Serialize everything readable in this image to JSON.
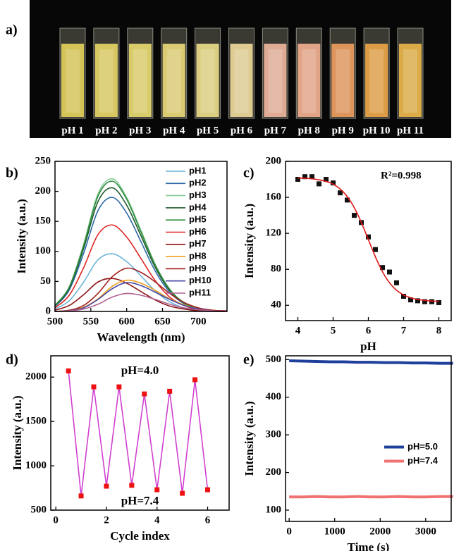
{
  "photo": {
    "label": "a)",
    "samples": [
      {
        "label": "pH 1",
        "color": "#e6d35a"
      },
      {
        "label": "pH 2",
        "color": "#e8d766"
      },
      {
        "label": "pH 3",
        "color": "#eadb70"
      },
      {
        "label": "pH 4",
        "color": "#ecdc7a"
      },
      {
        "label": "pH 5",
        "color": "#eedf88"
      },
      {
        "label": "pH 6",
        "color": "#f0dc9c"
      },
      {
        "label": "pH 7",
        "color": "#f2b8a0"
      },
      {
        "label": "pH 8",
        "color": "#f4b090"
      },
      {
        "label": "pH 9",
        "color": "#f0a060"
      },
      {
        "label": "pH 10",
        "color": "#f0a848"
      },
      {
        "label": "pH 11",
        "color": "#ecb848"
      }
    ]
  },
  "chart_data": [
    {
      "type": "line",
      "label": "b)",
      "xlabel": "Wavelength (nm)",
      "ylabel": "Intensity (a.u.)",
      "smooth": true,
      "xlim": [
        500,
        740
      ],
      "ylim": [
        0,
        250
      ],
      "xticks": [
        500,
        550,
        600,
        650,
        700
      ],
      "yticks": [
        0,
        50,
        100,
        150,
        200,
        250
      ],
      "legend": "upper right",
      "x": [
        500,
        520,
        540,
        560,
        580,
        600,
        620,
        640,
        660,
        680,
        700,
        720,
        740
      ],
      "series": [
        {
          "name": "pH1",
          "color": "#6cb4d8",
          "values": [
            4,
            18,
            49,
            86,
            96,
            83,
            59,
            34,
            16,
            6,
            2,
            1,
            0
          ]
        },
        {
          "name": "pH2",
          "color": "#2c6aa8",
          "values": [
            8,
            36,
            97,
            168,
            190,
            164,
            116,
            67,
            32,
            13,
            4,
            1,
            0
          ]
        },
        {
          "name": "pH3",
          "color": "#86cc96",
          "values": [
            10,
            41,
            112,
            196,
            221,
            190,
            135,
            78,
            37,
            15,
            5,
            1,
            0
          ]
        },
        {
          "name": "pH4",
          "color": "#1e5a2c",
          "values": [
            9,
            39,
            105,
            183,
            206,
            177,
            126,
            73,
            35,
            14,
            4,
            1,
            0
          ]
        },
        {
          "name": "pH5",
          "color": "#2e8c3e",
          "values": [
            10,
            41,
            110,
            192,
            217,
            187,
            132,
            77,
            37,
            14,
            5,
            1,
            0
          ]
        },
        {
          "name": "pH6",
          "color": "#e02424",
          "values": [
            6,
            27,
            73,
            128,
            144,
            124,
            88,
            51,
            24,
            10,
            3,
            1,
            0
          ]
        },
        {
          "name": "pH7",
          "color": "#8c1414",
          "values": [
            2,
            10,
            28,
            49,
            55,
            47,
            33,
            19,
            9,
            4,
            1,
            0,
            0
          ]
        },
        {
          "name": "pH8",
          "color": "#f0a020",
          "values": [
            0,
            2,
            7,
            21,
            42,
            52,
            47,
            35,
            21,
            11,
            4,
            2,
            0
          ]
        },
        {
          "name": "pH9",
          "color": "#a02020",
          "values": [
            0,
            2,
            10,
            30,
            58,
            72,
            65,
            49,
            30,
            15,
            6,
            2,
            1
          ]
        },
        {
          "name": "pH10",
          "color": "#4848a8",
          "values": [
            0,
            1,
            6,
            20,
            38,
            48,
            43,
            32,
            20,
            10,
            4,
            1,
            0
          ]
        },
        {
          "name": "pH11",
          "color": "#b06090",
          "values": [
            0,
            1,
            4,
            12,
            24,
            30,
            27,
            20,
            12,
            6,
            3,
            1,
            0
          ]
        }
      ]
    },
    {
      "type": "scatter",
      "label": "c)",
      "xlabel": "pH",
      "ylabel": "Intensity (a.u.)",
      "annotation": "R²=0.998",
      "xlim": [
        3.65,
        8.35
      ],
      "ylim": [
        23,
        200
      ],
      "xticks": [
        4,
        5,
        6,
        7,
        8
      ],
      "yticks": [
        40,
        80,
        120,
        160,
        200
      ],
      "series": [
        {
          "style": "markers",
          "color": "#111111",
          "x": [
            4.0,
            4.2,
            4.4,
            4.6,
            4.8,
            5.0,
            5.2,
            5.4,
            5.6,
            5.8,
            6.0,
            6.2,
            6.4,
            6.6,
            6.8,
            7.0,
            7.2,
            7.4,
            7.6,
            7.8,
            8.0
          ],
          "values": [
            180,
            183,
            183,
            175,
            180,
            176,
            165,
            157,
            140,
            132,
            116,
            102,
            82,
            77,
            65,
            50,
            46,
            45,
            44,
            44,
            43
          ]
        },
        {
          "style": "line",
          "color": "#e01818",
          "x": [
            4.0,
            4.25,
            4.5,
            4.75,
            5.0,
            5.25,
            5.5,
            5.75,
            6.0,
            6.25,
            6.5,
            6.75,
            7.0,
            7.25,
            7.5,
            7.75,
            8.0
          ],
          "values": [
            181.5,
            181.1,
            180.1,
            178.2,
            174.6,
            167.5,
            155.3,
            136.6,
            113,
            89.4,
            70.6,
            58.5,
            51.5,
            47.8,
            45.9,
            44.9,
            44.5
          ]
        }
      ]
    },
    {
      "type": "line",
      "label": "d)",
      "xlabel": "Cycle index",
      "ylabel": "Intensity (a.u.)",
      "annotations": [
        "pH=4.0",
        "pH=7.4"
      ],
      "xlim": [
        -0.2,
        6.85
      ],
      "ylim": [
        500,
        2240
      ],
      "xticks": [
        0,
        2,
        4,
        6
      ],
      "yticks": [
        500,
        1000,
        1500,
        2000
      ],
      "series": [
        {
          "style": "line+markers",
          "color": "#d040d0",
          "marker_color": "#ee1111",
          "x": [
            0.5,
            1,
            1.5,
            2,
            2.5,
            3,
            3.5,
            4,
            4.5,
            5,
            5.5,
            6
          ],
          "values": [
            2070,
            660,
            1890,
            770,
            1890,
            780,
            1810,
            730,
            1840,
            690,
            1970,
            730
          ]
        }
      ]
    },
    {
      "type": "line",
      "label": "e)",
      "xlabel": "Time (s)",
      "ylabel": "Intensity (a.u.)",
      "legend": "center right",
      "xlim": [
        -80,
        3560
      ],
      "ylim": [
        70,
        510
      ],
      "xticks": [
        0,
        1000,
        2000,
        3000
      ],
      "yticks": [
        100,
        200,
        300,
        400,
        500
      ],
      "series": [
        {
          "name": "pH=5.0",
          "style": "line",
          "color": "#1f3f9c",
          "x": [
            0,
            300,
            600,
            900,
            1200,
            1500,
            1800,
            2100,
            2400,
            2700,
            3000,
            3300,
            3600
          ],
          "values": [
            497,
            496,
            495,
            494,
            494,
            493,
            493,
            492,
            492,
            491,
            491,
            490,
            490
          ]
        },
        {
          "name": "pH=7.4",
          "style": "line",
          "color": "#f07272",
          "x": [
            0,
            300,
            600,
            900,
            1200,
            1500,
            1800,
            2100,
            2400,
            2700,
            3000,
            3300,
            3600
          ],
          "values": [
            135,
            135,
            136,
            135,
            135,
            136,
            135,
            135,
            136,
            135,
            135,
            136,
            136
          ]
        }
      ]
    }
  ]
}
